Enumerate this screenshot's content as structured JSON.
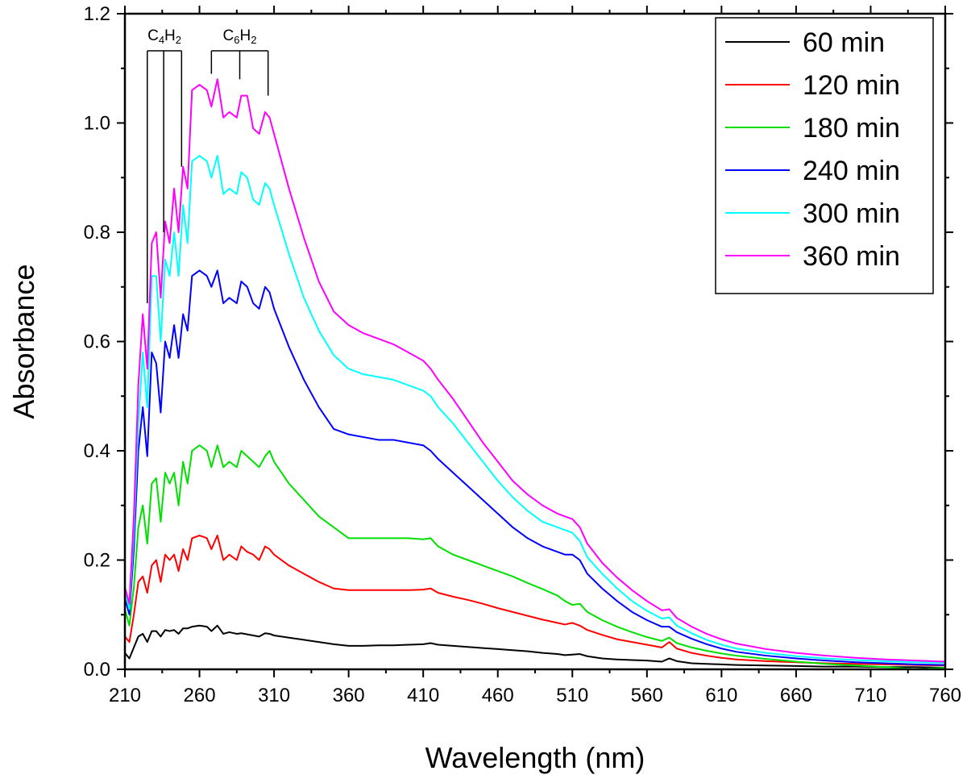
{
  "chart_data": {
    "type": "line",
    "xlabel": "Wavelength (nm)",
    "ylabel": "Absorbance",
    "xlim": [
      210,
      760
    ],
    "ylim": [
      0.0,
      1.2
    ],
    "xticks": [
      210,
      260,
      310,
      360,
      410,
      460,
      510,
      560,
      610,
      660,
      710,
      760
    ],
    "xtick_labels": [
      "210",
      "260",
      "310",
      "360",
      "410",
      "460",
      "510",
      "560",
      "610",
      "660",
      "710",
      "760"
    ],
    "yticks": [
      0.0,
      0.2,
      0.4,
      0.6,
      0.8,
      1.0,
      1.2
    ],
    "ytick_labels": [
      "0.0",
      "0.2",
      "0.4",
      "0.6",
      "0.8",
      "1.0",
      "1.2"
    ],
    "grid": false,
    "legend_position": "top-right",
    "annotations": [
      {
        "main": "C",
        "sub1": "4",
        "mid": "H",
        "sub2": "2",
        "lines_x": [
          225,
          236,
          248
        ],
        "bracket_x": [
          225,
          248
        ],
        "ends_y": [
          0.67,
          0.8,
          0.92
        ]
      },
      {
        "main": "C",
        "sub1": "6",
        "mid": "H",
        "sub2": "2",
        "lines_x": [
          268,
          287,
          306
        ],
        "bracket_x": [
          268,
          306
        ],
        "ends_y": [
          1.09,
          1.08,
          1.05
        ]
      }
    ],
    "x": [
      210,
      213,
      216,
      219,
      222,
      225,
      228,
      231,
      234,
      237,
      240,
      243,
      246,
      249,
      252,
      255,
      260,
      265,
      268,
      272,
      276,
      280,
      285,
      288,
      292,
      296,
      300,
      304,
      307,
      310,
      320,
      330,
      340,
      350,
      360,
      370,
      380,
      390,
      400,
      410,
      415,
      420,
      430,
      440,
      450,
      460,
      470,
      480,
      490,
      500,
      505,
      510,
      515,
      520,
      530,
      540,
      550,
      560,
      570,
      575,
      580,
      590,
      600,
      610,
      620,
      640,
      660,
      680,
      700,
      720,
      740,
      760
    ],
    "series": [
      {
        "name": "60 min",
        "color": "#000000",
        "values": [
          0.03,
          0.02,
          0.04,
          0.06,
          0.065,
          0.05,
          0.07,
          0.07,
          0.06,
          0.072,
          0.07,
          0.072,
          0.065,
          0.075,
          0.075,
          0.078,
          0.08,
          0.078,
          0.07,
          0.08,
          0.065,
          0.068,
          0.065,
          0.066,
          0.064,
          0.062,
          0.06,
          0.066,
          0.065,
          0.062,
          0.058,
          0.054,
          0.05,
          0.046,
          0.043,
          0.043,
          0.044,
          0.044,
          0.045,
          0.046,
          0.048,
          0.045,
          0.043,
          0.041,
          0.039,
          0.037,
          0.035,
          0.033,
          0.03,
          0.028,
          0.026,
          0.027,
          0.028,
          0.024,
          0.02,
          0.018,
          0.017,
          0.016,
          0.014,
          0.02,
          0.015,
          0.011,
          0.01,
          0.009,
          0.008,
          0.007,
          0.006,
          0.005,
          0.005,
          0.004,
          0.004,
          0.003
        ]
      },
      {
        "name": "120 min",
        "color": "#ff0000",
        "values": [
          0.06,
          0.05,
          0.1,
          0.16,
          0.17,
          0.14,
          0.19,
          0.2,
          0.16,
          0.21,
          0.2,
          0.21,
          0.18,
          0.22,
          0.2,
          0.24,
          0.245,
          0.24,
          0.22,
          0.245,
          0.2,
          0.21,
          0.2,
          0.225,
          0.215,
          0.21,
          0.2,
          0.225,
          0.22,
          0.21,
          0.19,
          0.175,
          0.16,
          0.148,
          0.145,
          0.145,
          0.145,
          0.145,
          0.145,
          0.146,
          0.148,
          0.14,
          0.133,
          0.127,
          0.12,
          0.112,
          0.105,
          0.098,
          0.091,
          0.085,
          0.082,
          0.085,
          0.08,
          0.072,
          0.063,
          0.055,
          0.05,
          0.045,
          0.04,
          0.05,
          0.038,
          0.03,
          0.025,
          0.021,
          0.018,
          0.015,
          0.013,
          0.011,
          0.01,
          0.009,
          0.008,
          0.007
        ]
      },
      {
        "name": "180 min",
        "color": "#00e000",
        "values": [
          0.11,
          0.08,
          0.15,
          0.26,
          0.3,
          0.23,
          0.34,
          0.35,
          0.27,
          0.36,
          0.34,
          0.36,
          0.3,
          0.38,
          0.34,
          0.4,
          0.41,
          0.4,
          0.37,
          0.41,
          0.37,
          0.38,
          0.37,
          0.4,
          0.39,
          0.38,
          0.37,
          0.39,
          0.4,
          0.38,
          0.34,
          0.31,
          0.28,
          0.26,
          0.24,
          0.24,
          0.24,
          0.24,
          0.24,
          0.238,
          0.24,
          0.225,
          0.21,
          0.2,
          0.19,
          0.18,
          0.17,
          0.158,
          0.147,
          0.135,
          0.125,
          0.118,
          0.12,
          0.105,
          0.09,
          0.078,
          0.068,
          0.059,
          0.052,
          0.058,
          0.048,
          0.04,
          0.034,
          0.029,
          0.025,
          0.019,
          0.014,
          0.01,
          0.007,
          0.004,
          0.0,
          0.003
        ]
      },
      {
        "name": "240 min",
        "color": "#0000ff",
        "values": [
          0.13,
          0.1,
          0.22,
          0.4,
          0.48,
          0.39,
          0.58,
          0.56,
          0.47,
          0.6,
          0.57,
          0.63,
          0.57,
          0.65,
          0.62,
          0.72,
          0.73,
          0.72,
          0.7,
          0.73,
          0.67,
          0.68,
          0.67,
          0.71,
          0.7,
          0.67,
          0.66,
          0.7,
          0.69,
          0.66,
          0.59,
          0.53,
          0.48,
          0.44,
          0.43,
          0.425,
          0.42,
          0.42,
          0.415,
          0.41,
          0.4,
          0.385,
          0.36,
          0.335,
          0.31,
          0.285,
          0.26,
          0.24,
          0.225,
          0.215,
          0.21,
          0.21,
          0.2,
          0.175,
          0.148,
          0.125,
          0.105,
          0.09,
          0.078,
          0.078,
          0.068,
          0.056,
          0.046,
          0.038,
          0.032,
          0.025,
          0.02,
          0.016,
          0.013,
          0.011,
          0.009,
          0.008
        ]
      },
      {
        "name": "300 min",
        "color": "#00ffff",
        "values": [
          0.14,
          0.11,
          0.25,
          0.45,
          0.58,
          0.48,
          0.72,
          0.72,
          0.6,
          0.75,
          0.72,
          0.8,
          0.72,
          0.85,
          0.78,
          0.93,
          0.94,
          0.93,
          0.9,
          0.94,
          0.87,
          0.88,
          0.87,
          0.91,
          0.9,
          0.86,
          0.85,
          0.89,
          0.88,
          0.85,
          0.76,
          0.68,
          0.62,
          0.575,
          0.55,
          0.54,
          0.535,
          0.53,
          0.52,
          0.51,
          0.5,
          0.48,
          0.45,
          0.415,
          0.38,
          0.345,
          0.315,
          0.29,
          0.27,
          0.26,
          0.255,
          0.25,
          0.235,
          0.205,
          0.175,
          0.148,
          0.125,
          0.107,
          0.093,
          0.095,
          0.08,
          0.066,
          0.054,
          0.045,
          0.038,
          0.03,
          0.024,
          0.02,
          0.017,
          0.015,
          0.013,
          0.012
        ]
      },
      {
        "name": "360 min",
        "color": "#ff00ff",
        "values": [
          0.15,
          0.12,
          0.28,
          0.52,
          0.65,
          0.55,
          0.78,
          0.8,
          0.68,
          0.82,
          0.78,
          0.88,
          0.8,
          0.92,
          0.88,
          1.06,
          1.07,
          1.06,
          1.03,
          1.08,
          1.01,
          1.02,
          1.01,
          1.05,
          1.05,
          0.99,
          0.98,
          1.02,
          1.01,
          0.98,
          0.88,
          0.79,
          0.71,
          0.655,
          0.63,
          0.615,
          0.605,
          0.595,
          0.58,
          0.565,
          0.55,
          0.53,
          0.495,
          0.455,
          0.415,
          0.38,
          0.345,
          0.32,
          0.3,
          0.285,
          0.28,
          0.275,
          0.26,
          0.23,
          0.195,
          0.168,
          0.145,
          0.125,
          0.108,
          0.11,
          0.094,
          0.078,
          0.065,
          0.055,
          0.047,
          0.037,
          0.03,
          0.025,
          0.021,
          0.018,
          0.016,
          0.014
        ]
      }
    ]
  }
}
